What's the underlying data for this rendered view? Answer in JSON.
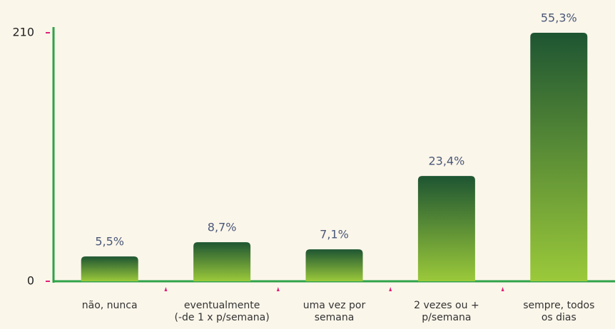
{
  "chart_data": {
    "type": "bar",
    "categories": [
      "não, nunca",
      "eventualmente\n(-de 1 x p/semana)",
      "uma vez por\nsemana",
      "2 vezes ou +\np/semana",
      "sempre, todos\nos dias"
    ],
    "values": [
      21,
      33,
      27,
      89,
      210
    ],
    "value_labels": [
      "5,5%",
      "8,7%",
      "7,1%",
      "23,4%",
      "55,3%"
    ],
    "color": [
      "#1e5532",
      "#9bc93a"
    ],
    "ylim": [
      0,
      210
    ],
    "yticks": [
      0,
      210
    ]
  }
}
